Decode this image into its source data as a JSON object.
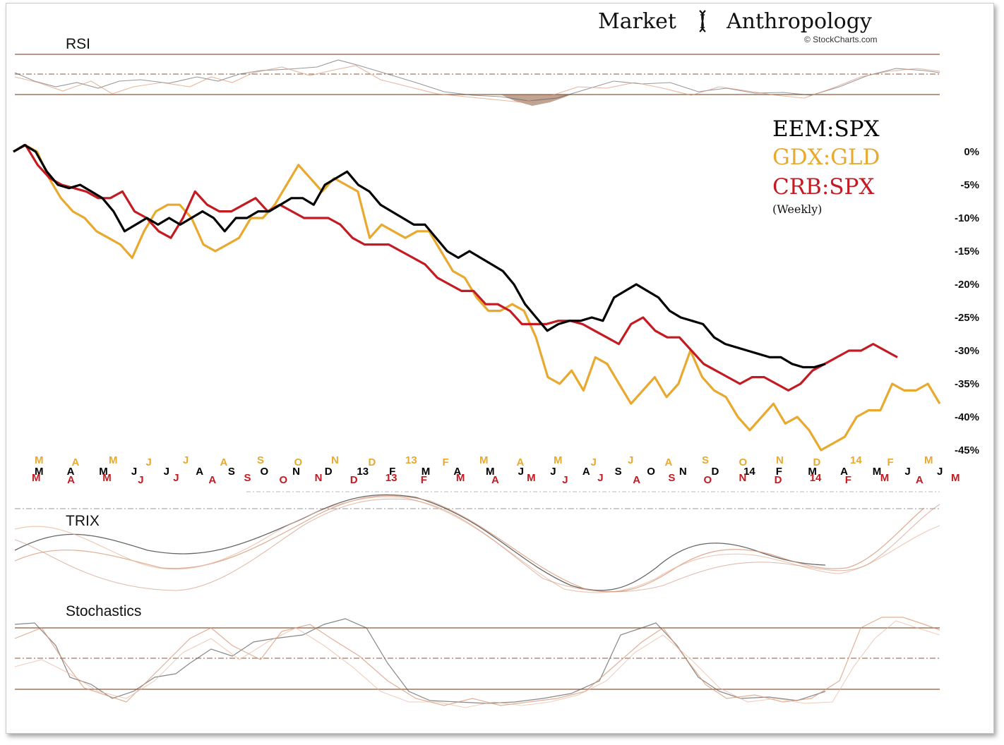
{
  "header": {
    "brand_left": "Market",
    "brand_right": "Anthropology",
    "credit": "© StockCharts.com"
  },
  "colors": {
    "eem": "#000000",
    "gdx": "#e8a92e",
    "crb": "#c41a22",
    "indicator": "#8b5a3c"
  },
  "panels": {
    "rsi": "RSI",
    "trix": "TRIX",
    "stoch": "Stochastics"
  },
  "chart_data": {
    "type": "line",
    "note_label": "(Weekly)",
    "yticks": [
      "0%",
      "-5%",
      "-10%",
      "-15%",
      "-20%",
      "-25%",
      "-30%",
      "-35%",
      "-40%",
      "-45%"
    ],
    "ylim": [
      -45,
      0
    ],
    "month_labels": {
      "gdx": [
        "M",
        "A",
        "M",
        "J",
        "J",
        "A",
        "S",
        "O",
        "N",
        "D",
        "13",
        "F",
        "M",
        "A",
        "M",
        "J",
        "J",
        "A",
        "S",
        "O",
        "N",
        "D",
        "14",
        "F",
        "M"
      ],
      "eem": [
        "M",
        "A",
        "M",
        "J",
        "J",
        "A",
        "S",
        "O",
        "N",
        "D",
        "13",
        "F",
        "M",
        "A",
        "M",
        "J",
        "J",
        "A",
        "S",
        "O",
        "N",
        "D",
        "14",
        "F",
        "M",
        "A",
        "M",
        "J",
        "J"
      ],
      "crb": [
        "M",
        "A",
        "M",
        "J",
        "J",
        "A",
        "S",
        "O",
        "N",
        "D",
        "13",
        "F",
        "M",
        "A",
        "M",
        "J",
        "J",
        "A",
        "S",
        "O",
        "N",
        "D",
        "14",
        "F",
        "M",
        "A",
        "M"
      ]
    },
    "series": [
      {
        "name": "EEM:SPX",
        "color": "#000000",
        "values": [
          0,
          1,
          0,
          -3,
          -5,
          -5.5,
          -5,
          -6,
          -7,
          -9,
          -12,
          -11,
          -10,
          -11,
          -10,
          -11,
          -10,
          -9,
          -10,
          -12,
          -10,
          -10,
          -9,
          -9,
          -8,
          -7,
          -7,
          -8,
          -5,
          -4,
          -3,
          -5,
          -6,
          -8,
          -9,
          -10,
          -11,
          -11,
          -13,
          -15,
          -16,
          -15,
          -16,
          -17,
          -18,
          -20,
          -23,
          -25,
          -27,
          -26,
          -25.5,
          -25.5,
          -25,
          -25.5,
          -22,
          -21,
          -20,
          -21,
          -22,
          -24,
          -25,
          -25.5,
          -26,
          -28,
          -29,
          -29.5,
          -30,
          -30.5,
          -31,
          -31,
          -32,
          -32.5,
          -32.5,
          -32
        ]
      },
      {
        "name": "GDX:GLD",
        "color": "#e8a92e",
        "values": [
          0,
          1,
          0,
          -4,
          -7,
          -9,
          -10,
          -12,
          -13,
          -14,
          -16,
          -12,
          -9,
          -8,
          -8,
          -10,
          -14,
          -15,
          -14,
          -13,
          -10,
          -10,
          -8,
          -5,
          -2,
          -4,
          -6,
          -4,
          -5,
          -6,
          -13,
          -11,
          -12,
          -13,
          -12,
          -12,
          -15,
          -18,
          -19,
          -22,
          -24,
          -24,
          -23,
          -24,
          -28,
          -34,
          -35,
          -33,
          -36,
          -31,
          -32,
          -35,
          -38,
          -36,
          -34,
          -37,
          -35,
          -30,
          -34,
          -36,
          -37,
          -40,
          -42,
          -40,
          -38,
          -41,
          -40,
          -42,
          -45,
          -44,
          -43,
          -40,
          -39,
          -39,
          -35,
          -36,
          -36,
          -35,
          -38
        ]
      },
      {
        "name": "CRB:SPX",
        "color": "#c41a22",
        "values": [
          0,
          1,
          -2,
          -4,
          -5,
          -5.5,
          -6,
          -7,
          -7,
          -6,
          -9,
          -10,
          -12,
          -13,
          -10,
          -6,
          -8,
          -9,
          -9,
          -8,
          -7,
          -9,
          -8,
          -9,
          -10,
          -10,
          -10,
          -11,
          -13,
          -14,
          -14,
          -14,
          -15,
          -16,
          -17,
          -19,
          -20,
          -21,
          -21,
          -23,
          -23,
          -24,
          -26,
          -26,
          -26,
          -25.5,
          -25.5,
          -26,
          -27,
          -28,
          -29,
          -26,
          -25,
          -27,
          -28,
          -28,
          -30,
          -32,
          -33,
          -34,
          -35,
          -34,
          -34,
          -35,
          -36,
          -35,
          -33,
          -32,
          -31,
          -30,
          -30,
          -29,
          -30,
          -31
        ]
      }
    ]
  }
}
